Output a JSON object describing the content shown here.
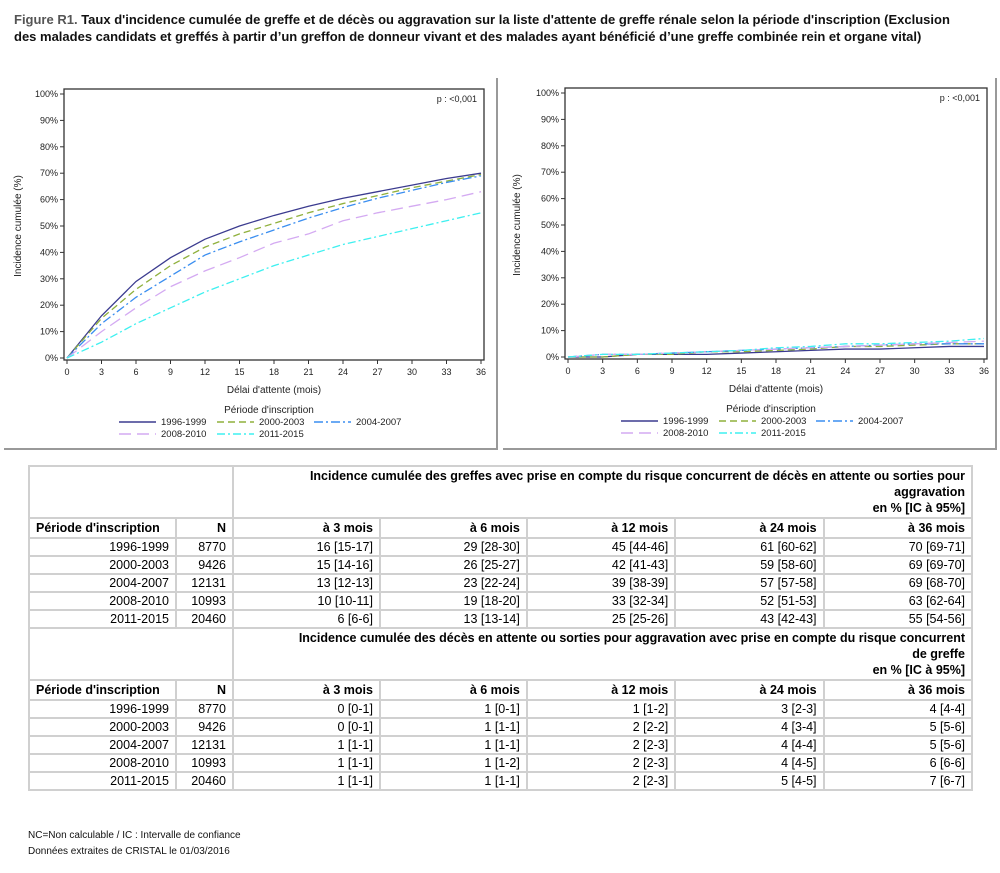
{
  "title": {
    "label": "Figure R1.",
    "text": "Taux d'incidence cumulée de greffe et de décès ou aggravation sur la liste d'attente de greffe rénale selon la période d'inscription (Exclusion des malades candidats et greffés à partir d’un greffon de donneur vivant et des malades ayant bénéficié d’une greffe combinée rein et organe vital)"
  },
  "chart_data": [
    {
      "type": "line",
      "title": "",
      "xlabel": "Délai d'attente (mois)",
      "ylabel": "Incidence cumulée (%)",
      "xlim": [
        0,
        36
      ],
      "ylim": [
        0,
        100
      ],
      "xticks": [
        "0",
        "3",
        "6",
        "9",
        "12",
        "15",
        "18",
        "21",
        "24",
        "27",
        "30",
        "33",
        "36"
      ],
      "yticks": [
        "0%",
        "10%",
        "20%",
        "30%",
        "40%",
        "50%",
        "60%",
        "70%",
        "80%",
        "90%",
        "100%"
      ],
      "annotation": "p : <0,001",
      "legend_title": "Période d'inscription",
      "legend_position": "bottom",
      "x": [
        0,
        3,
        6,
        9,
        12,
        15,
        18,
        21,
        24,
        27,
        30,
        33,
        36
      ],
      "series": [
        {
          "name": "1996-1999",
          "color": "#3b3b8f",
          "dash": "",
          "values": [
            0,
            16,
            29,
            38,
            45,
            50,
            54,
            57.5,
            60.5,
            63,
            65.5,
            68,
            70
          ]
        },
        {
          "name": "2000-2003",
          "color": "#8fb03c",
          "dash": "7,4",
          "values": [
            0,
            15,
            26,
            35,
            42,
            47,
            51,
            55,
            58.5,
            61.5,
            64.5,
            67,
            69.5
          ]
        },
        {
          "name": "2004-2007",
          "color": "#3a8ef0",
          "dash": "9,3,2,3",
          "values": [
            0,
            13,
            23,
            31,
            39,
            44,
            48.5,
            53,
            57,
            60.5,
            63.5,
            66.5,
            69
          ]
        },
        {
          "name": "2008-2010",
          "color": "#d4aaf2",
          "dash": "12,6",
          "values": [
            0,
            10,
            19,
            27,
            33,
            38,
            43.5,
            47,
            52,
            55,
            57.5,
            60,
            63
          ]
        },
        {
          "name": "2011-2015",
          "color": "#3ef0f0",
          "dash": "8,3,2,3",
          "values": [
            0,
            6,
            13,
            19,
            25,
            30,
            35,
            39,
            43,
            46,
            49,
            52,
            55
          ]
        }
      ]
    },
    {
      "type": "line",
      "title": "",
      "xlabel": "Délai d'attente (mois)",
      "ylabel": "Incidence cumulée (%)",
      "xlim": [
        0,
        36
      ],
      "ylim": [
        0,
        100
      ],
      "xticks": [
        "0",
        "3",
        "6",
        "9",
        "12",
        "15",
        "18",
        "21",
        "24",
        "27",
        "30",
        "33",
        "36"
      ],
      "yticks": [
        "0%",
        "10%",
        "20%",
        "30%",
        "40%",
        "50%",
        "60%",
        "70%",
        "80%",
        "90%",
        "100%"
      ],
      "annotation": "p : <0,001",
      "legend_title": "Période d'inscription",
      "legend_position": "bottom",
      "x": [
        0,
        3,
        6,
        9,
        12,
        15,
        18,
        21,
        24,
        27,
        30,
        33,
        36
      ],
      "series": [
        {
          "name": "1996-1999",
          "color": "#3b3b8f",
          "dash": "",
          "values": [
            0,
            0,
            1,
            1,
            1,
            1.5,
            2,
            2.5,
            3,
            3,
            3.5,
            4,
            4
          ]
        },
        {
          "name": "2000-2003",
          "color": "#8fb03c",
          "dash": "7,4",
          "values": [
            0,
            0,
            1,
            1,
            2,
            2,
            2.5,
            3,
            4,
            4,
            4.5,
            5,
            5
          ]
        },
        {
          "name": "2004-2007",
          "color": "#3a8ef0",
          "dash": "9,3,2,3",
          "values": [
            0,
            1,
            1,
            1.5,
            2,
            2.5,
            3,
            3.5,
            4,
            4.5,
            5,
            5,
            5
          ]
        },
        {
          "name": "2008-2010",
          "color": "#d4aaf2",
          "dash": "12,6",
          "values": [
            0,
            1,
            1,
            1.5,
            2,
            2.5,
            3,
            3.5,
            4,
            4.5,
            5,
            5.5,
            6
          ]
        },
        {
          "name": "2011-2015",
          "color": "#3ef0f0",
          "dash": "8,3,2,3",
          "values": [
            0,
            1,
            1,
            1.5,
            2,
            2.5,
            3.5,
            4,
            5,
            5,
            5.5,
            6,
            7
          ]
        }
      ]
    }
  ],
  "table": {
    "col_period": "Période d'inscription",
    "col_n": "N",
    "cols": [
      "à 3 mois",
      "à 6 mois",
      "à 12 mois",
      "à 24 mois",
      "à 36 mois"
    ],
    "blocks": [
      {
        "header": [
          "Incidence cumulée des greffes avec prise en compte du risque concurrent de décès en attente ou sorties pour",
          "aggravation",
          "en % [IC à 95%]"
        ],
        "rows": [
          [
            "1996-1999",
            "8770",
            "16 [15-17]",
            "29 [28-30]",
            "45 [44-46]",
            "61 [60-62]",
            "70 [69-71]"
          ],
          [
            "2000-2003",
            "9426",
            "15 [14-16]",
            "26 [25-27]",
            "42 [41-43]",
            "59 [58-60]",
            "69 [69-70]"
          ],
          [
            "2004-2007",
            "12131",
            "13 [12-13]",
            "23 [22-24]",
            "39 [38-39]",
            "57 [57-58]",
            "69 [68-70]"
          ],
          [
            "2008-2010",
            "10993",
            "10 [10-11]",
            "19 [18-20]",
            "33 [32-34]",
            "52 [51-53]",
            "63 [62-64]"
          ],
          [
            "2011-2015",
            "20460",
            "6 [6-6]",
            "13 [13-14]",
            "25 [25-26]",
            "43 [42-43]",
            "55 [54-56]"
          ]
        ]
      },
      {
        "header": [
          "Incidence cumulée des décès en attente ou sorties pour aggravation avec prise en compte du risque concurrent",
          "de greffe",
          "en % [IC à 95%]"
        ],
        "rows": [
          [
            "1996-1999",
            "8770",
            "0 [0-1]",
            "1 [0-1]",
            "1 [1-2]",
            "3 [2-3]",
            "4 [4-4]"
          ],
          [
            "2000-2003",
            "9426",
            "0 [0-1]",
            "1 [1-1]",
            "2 [2-2]",
            "4 [3-4]",
            "5 [5-6]"
          ],
          [
            "2004-2007",
            "12131",
            "1 [1-1]",
            "1 [1-1]",
            "2 [2-3]",
            "4 [4-4]",
            "5 [5-6]"
          ],
          [
            "2008-2010",
            "10993",
            "1 [1-1]",
            "1 [1-2]",
            "2 [2-3]",
            "4 [4-5]",
            "6 [6-6]"
          ],
          [
            "2011-2015",
            "20460",
            "1 [1-1]",
            "1 [1-1]",
            "2 [2-3]",
            "5 [4-5]",
            "7 [6-7]"
          ]
        ]
      }
    ]
  },
  "notes": [
    "NC=Non calculable / IC : Intervalle de confiance",
    "Données extraites de CRISTAL le 01/03/2016"
  ]
}
